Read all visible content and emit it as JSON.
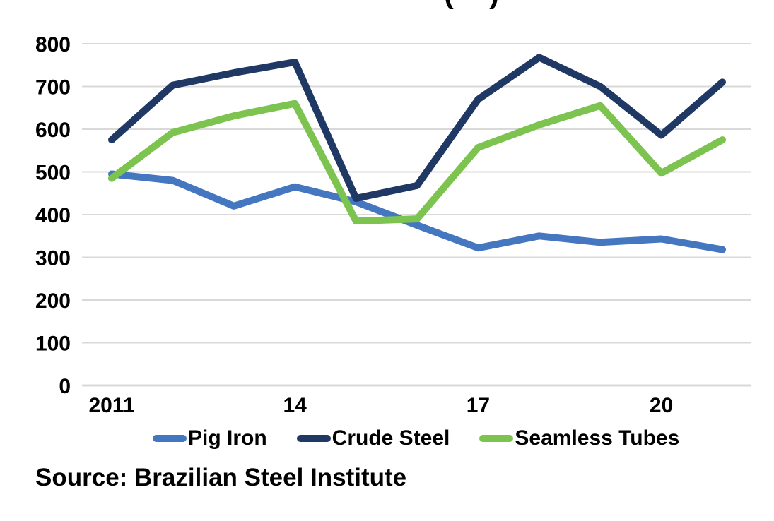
{
  "header": {
    "clipped_title_paren_open": "(",
    "clipped_title_paren_close": ")"
  },
  "chart_data": {
    "type": "line",
    "x": [
      2011,
      2012,
      2013,
      2014,
      2015,
      2016,
      2017,
      2018,
      2019,
      2020,
      2021
    ],
    "x_tick_labels": [
      {
        "x": 2011,
        "label": "2011"
      },
      {
        "x": 2014,
        "label": "14"
      },
      {
        "x": 2017,
        "label": "17"
      },
      {
        "x": 2020,
        "label": "20"
      }
    ],
    "y_ticks": [
      "0",
      "100",
      "200",
      "300",
      "400",
      "500",
      "600",
      "700",
      "800"
    ],
    "ylim": [
      0,
      800
    ],
    "grid": "horizontal-only",
    "legend_position": "bottom",
    "series": [
      {
        "name": "Pig Iron",
        "color": "#4576C0",
        "values": [
          495,
          480,
          420,
          465,
          430,
          375,
          322,
          350,
          335,
          343,
          318
        ]
      },
      {
        "name": "Crude Steel",
        "color": "#1F3864",
        "values": [
          575,
          703,
          732,
          757,
          438,
          468,
          670,
          768,
          700,
          586,
          710
        ]
      },
      {
        "name": "Seamless Tubes",
        "color": "#7CC350",
        "values": [
          485,
          592,
          631,
          660,
          385,
          390,
          557,
          610,
          655,
          497,
          575
        ]
      }
    ],
    "gridline_color": "#D9D9D9",
    "axis_text_color": "#000000"
  },
  "footer": {
    "source": "Source: Brazilian Steel Institute"
  }
}
